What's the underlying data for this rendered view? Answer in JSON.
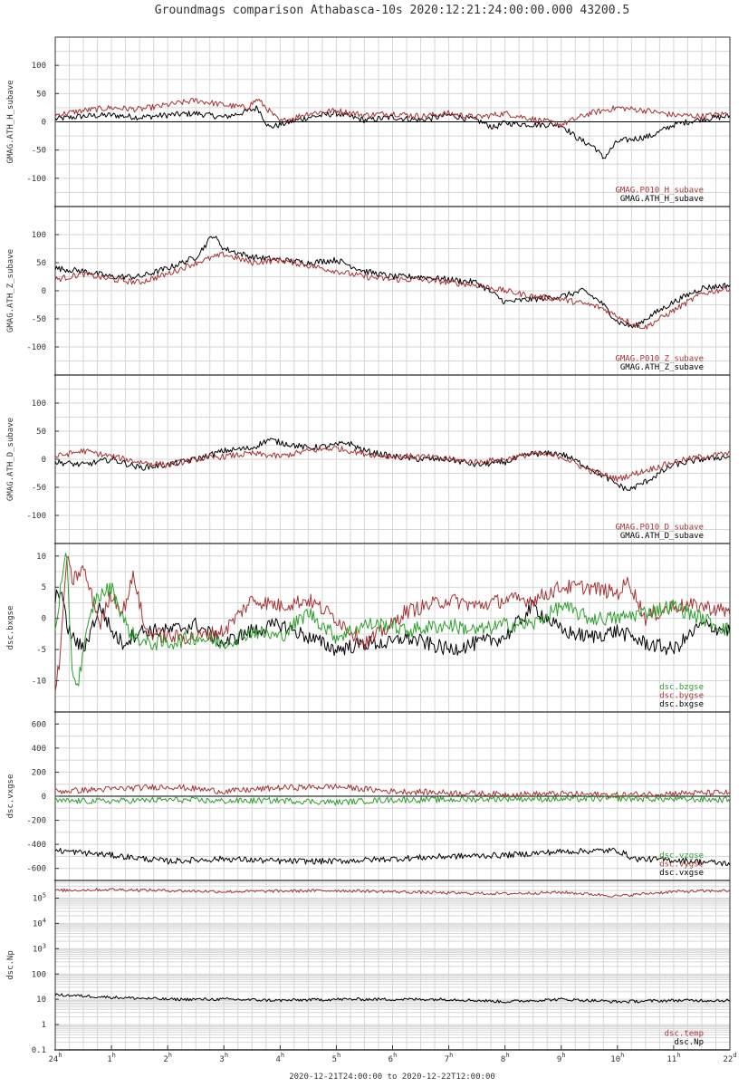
{
  "title": "Groundmags comparison Athabasca-10s 2020:12:21:24:00:00.000 43200.5",
  "footer": "2020-12-21T24:00:00 to 2020-12-22T12:00:00",
  "colors": {
    "black": "#000000",
    "red": "#a83232",
    "green": "#2ca02c",
    "grid": "#d6d6d6"
  },
  "chart_data": [
    {
      "type": "line",
      "ylabel": "GMAG.ATH_H_subave",
      "ylim": [
        -150,
        150
      ],
      "yticks": [
        "100",
        "50",
        "0",
        "-50",
        "-100"
      ],
      "ytick_values": [
        100,
        50,
        0,
        -50,
        -100
      ],
      "zero_line": true,
      "legend": [
        "GMAG.P010_H_subave",
        "GMAG.ATH_H_subave"
      ],
      "series": [
        {
          "name": "GMAG.P010_H_subave",
          "color": "#a83232",
          "x": [
            0,
            0.5,
            1,
            1.5,
            2,
            2.5,
            3,
            3.4,
            3.6,
            4,
            4.5,
            5,
            5.5,
            6,
            6.5,
            7,
            7.5,
            8,
            8.5,
            9,
            9.5,
            10,
            10.5,
            11,
            11.5,
            12
          ],
          "y": [
            12,
            20,
            25,
            22,
            30,
            38,
            30,
            25,
            40,
            0,
            15,
            20,
            12,
            15,
            10,
            15,
            8,
            15,
            5,
            -5,
            15,
            25,
            20,
            12,
            10,
            15
          ]
        },
        {
          "name": "GMAG.ATH_H_subave",
          "color": "#000000",
          "x": [
            0,
            0.5,
            1,
            1.5,
            2,
            2.5,
            3,
            3.4,
            3.6,
            3.8,
            4,
            4.5,
            5,
            5.5,
            6,
            6.5,
            7,
            7.5,
            7.8,
            8,
            8.5,
            9,
            9.3,
            9.6,
            9.75,
            10,
            10.3,
            10.6,
            11,
            11.5,
            12
          ],
          "y": [
            5,
            10,
            12,
            8,
            12,
            15,
            8,
            18,
            25,
            -10,
            -5,
            8,
            15,
            3,
            8,
            3,
            12,
            3,
            -10,
            -2,
            -5,
            -5,
            -30,
            -45,
            -65,
            -35,
            -30,
            -25,
            -5,
            5,
            10
          ]
        }
      ]
    },
    {
      "type": "line",
      "ylabel": "GMAG.ATH_Z_subave",
      "ylim": [
        -150,
        150
      ],
      "yticks": [
        "100",
        "50",
        "0",
        "-50",
        "-100"
      ],
      "ytick_values": [
        100,
        50,
        0,
        -50,
        -100
      ],
      "zero_line": false,
      "legend": [
        "GMAG.P010_Z_subave",
        "GMAG.ATH_Z_subave"
      ],
      "series": [
        {
          "name": "GMAG.P010_Z_subave",
          "color": "#a83232",
          "x": [
            0,
            0.5,
            1,
            1.5,
            2,
            2.5,
            3,
            3.5,
            4,
            4.5,
            5,
            5.5,
            6,
            6.5,
            7,
            7.5,
            8,
            8.5,
            9,
            9.5,
            9.7,
            10,
            10.3,
            10.5,
            11,
            11.5,
            12
          ],
          "y": [
            20,
            30,
            20,
            15,
            30,
            50,
            65,
            50,
            55,
            45,
            35,
            25,
            20,
            20,
            15,
            10,
            0,
            -10,
            -15,
            -25,
            -30,
            -45,
            -60,
            -65,
            -35,
            -5,
            5
          ]
        },
        {
          "name": "GMAG.ATH_Z_subave",
          "color": "#000000",
          "x": [
            0,
            0.5,
            1,
            1.5,
            2,
            2.5,
            2.7,
            2.8,
            3,
            3.5,
            4,
            4.5,
            5,
            5.5,
            6,
            6.5,
            7,
            7.5,
            8,
            8.5,
            9,
            9.4,
            9.7,
            10,
            10.3,
            10.5,
            11,
            11.5,
            12
          ],
          "y": [
            40,
            35,
            25,
            25,
            40,
            60,
            85,
            100,
            75,
            60,
            55,
            50,
            55,
            35,
            25,
            25,
            20,
            15,
            -20,
            -15,
            -10,
            0,
            -20,
            -55,
            -65,
            -50,
            -20,
            5,
            10
          ]
        }
      ]
    },
    {
      "type": "line",
      "ylabel": "GMAG.ATH_D_subave",
      "ylim": [
        -150,
        150
      ],
      "yticks": [
        "100",
        "50",
        "0",
        "-50",
        "-100"
      ],
      "ytick_values": [
        100,
        50,
        0,
        -50,
        -100
      ],
      "zero_line": false,
      "legend": [
        "GMAG.P010_D_subave",
        "GMAG.ATH_D_subave"
      ],
      "series": [
        {
          "name": "GMAG.P010_D_subave",
          "color": "#a83232",
          "x": [
            0,
            0.5,
            1,
            1.5,
            2,
            2.5,
            3,
            3.5,
            4,
            4.5,
            5,
            5.5,
            6,
            6.5,
            7,
            7.5,
            8,
            8.5,
            9,
            9.5,
            10,
            10.5,
            11,
            11.5,
            12
          ],
          "y": [
            5,
            15,
            5,
            -5,
            -10,
            0,
            5,
            10,
            5,
            15,
            20,
            10,
            5,
            5,
            0,
            -5,
            0,
            10,
            5,
            -20,
            -35,
            -20,
            -5,
            5,
            10
          ]
        },
        {
          "name": "GMAG.ATH_D_subave",
          "color": "#000000",
          "x": [
            0,
            0.5,
            1,
            1.5,
            2,
            2.5,
            3,
            3.5,
            3.8,
            4,
            4.5,
            5,
            5.2,
            5.5,
            6,
            6.5,
            7,
            7.5,
            8,
            8.5,
            9,
            9.5,
            10,
            10.2,
            10.5,
            11,
            11.5,
            12
          ],
          "y": [
            -5,
            -10,
            0,
            -15,
            -10,
            0,
            15,
            20,
            35,
            30,
            20,
            25,
            30,
            15,
            5,
            0,
            0,
            -10,
            -5,
            10,
            10,
            -15,
            -45,
            -55,
            -40,
            -10,
            0,
            5
          ]
        }
      ]
    },
    {
      "type": "line",
      "ylabel": "dsc.bxgse",
      "ylim": [
        -15,
        12
      ],
      "yticks": [
        "10",
        "5",
        "0",
        "-5",
        "-10"
      ],
      "ytick_values": [
        10,
        5,
        0,
        -5,
        -10
      ],
      "zero_line": false,
      "legend": [
        "dsc.bzgse",
        "dsc.bygse",
        "dsc.bxgse"
      ],
      "series": [
        {
          "name": "dsc.bzgse",
          "color": "#2ca02c",
          "x": [
            0,
            0.1,
            0.2,
            0.3,
            0.4,
            0.5,
            0.7,
            1,
            1.3,
            1.6,
            2,
            2.5,
            3,
            3.5,
            4,
            4.5,
            5,
            5.5,
            6,
            6.2,
            7,
            7.5,
            8,
            8.5,
            9,
            9.5,
            10,
            10.5,
            11,
            11.5,
            12
          ],
          "y": [
            -2,
            5,
            10,
            -8,
            -11,
            -5,
            3,
            5,
            -2,
            -4,
            -4,
            -3,
            -4,
            -2,
            -3,
            1,
            -3,
            -1,
            -1,
            -2,
            -1,
            -2,
            -1,
            -1,
            2,
            0,
            0,
            1,
            2,
            0,
            -2
          ]
        },
        {
          "name": "dsc.bygse",
          "color": "#a83232",
          "x": [
            0,
            0.1,
            0.2,
            0.3,
            0.5,
            0.8,
            1,
            1.2,
            1.4,
            1.6,
            2,
            2.5,
            3,
            3.5,
            4,
            4.5,
            5,
            5.5,
            6,
            6.2,
            7,
            7.5,
            8,
            8.5,
            9,
            9.5,
            10,
            10.2,
            10.5,
            11,
            11.5,
            12
          ],
          "y": [
            -12,
            -5,
            10,
            6,
            8,
            -1,
            4,
            1,
            7,
            -2,
            -3,
            -3,
            -2,
            3,
            2,
            3,
            0,
            -4,
            -1,
            1,
            3,
            2,
            3,
            3,
            5,
            5,
            4,
            6,
            0,
            2,
            2,
            1
          ]
        },
        {
          "name": "dsc.bxgse",
          "color": "#000000",
          "x": [
            0,
            0.1,
            0.2,
            0.3,
            0.5,
            0.8,
            1,
            1.2,
            1.5,
            2,
            2.5,
            3,
            3.5,
            4,
            4.5,
            5,
            5.5,
            6,
            6.2,
            7,
            7.5,
            8,
            8.5,
            9,
            9.5,
            10,
            10.5,
            11,
            11.5,
            12
          ],
          "y": [
            3,
            5,
            -1,
            -3,
            -5,
            2,
            -2,
            -4,
            -2,
            -2,
            -1,
            -4,
            -2,
            -1,
            -3,
            -5,
            -4,
            -4,
            -3,
            -5,
            -4,
            -3,
            2,
            -2,
            -3,
            -2,
            -4,
            -5,
            -1,
            -2
          ]
        }
      ]
    },
    {
      "type": "line",
      "ylabel": "dsc.vxgse",
      "ylim": [
        -700,
        700
      ],
      "yticks": [
        "600",
        "400",
        "200",
        "0",
        "-200",
        "-400",
        "-600"
      ],
      "ytick_values": [
        600,
        400,
        200,
        0,
        -200,
        -400,
        -600
      ],
      "zero_line": true,
      "legend": [
        "dsc.vzgse",
        "dsc.vygse",
        "dsc.vxgse"
      ],
      "series": [
        {
          "name": "dsc.vzgse",
          "color": "#2ca02c",
          "x": [
            0,
            1,
            2,
            3,
            4,
            5,
            6,
            7,
            8,
            9,
            10,
            11,
            12
          ],
          "y": [
            -40,
            -40,
            -30,
            -40,
            -35,
            -50,
            -30,
            -30,
            -20,
            -25,
            -20,
            -25,
            -30
          ]
        },
        {
          "name": "dsc.vygse",
          "color": "#a83232",
          "x": [
            0,
            1,
            2,
            2.3,
            3,
            4,
            5,
            6,
            7,
            8,
            9,
            10,
            11,
            12
          ],
          "y": [
            40,
            60,
            80,
            70,
            40,
            70,
            80,
            40,
            30,
            15,
            20,
            10,
            25,
            30
          ]
        },
        {
          "name": "dsc.vxgse",
          "color": "#000000",
          "x": [
            0,
            1,
            2,
            3,
            4,
            5,
            6,
            7,
            8,
            9,
            10,
            10.3,
            11,
            12
          ],
          "y": [
            -450,
            -490,
            -540,
            -520,
            -540,
            -540,
            -520,
            -500,
            -490,
            -460,
            -450,
            -520,
            -530,
            -560
          ]
        }
      ]
    },
    {
      "type": "line",
      "ylabel": "dsc.Np",
      "yscale": "log",
      "ylim": [
        0.1,
        500000
      ],
      "yticks": [
        "10^5",
        "10^4",
        "10^3",
        "100",
        "10",
        "1",
        "0.1"
      ],
      "ytick_values": [
        100000,
        10000,
        1000,
        100,
        10,
        1,
        0.1
      ],
      "zero_line": false,
      "legend": [
        "dsc.temp",
        "dsc.Np"
      ],
      "series": [
        {
          "name": "dsc.temp",
          "color": "#a83232",
          "x": [
            0,
            1,
            2,
            3,
            4,
            5,
            6,
            7,
            8,
            9,
            10,
            11,
            12
          ],
          "y": [
            200000,
            220000,
            200000,
            180000,
            190000,
            200000,
            180000,
            160000,
            150000,
            170000,
            120000,
            180000,
            200000
          ]
        },
        {
          "name": "dsc.Np",
          "color": "#000000",
          "x": [
            0,
            1,
            2,
            3,
            4,
            5,
            6,
            7,
            8,
            9,
            10,
            11,
            12
          ],
          "y": [
            15,
            12,
            10,
            10,
            9,
            10,
            10,
            10,
            8,
            10,
            8,
            9,
            9
          ]
        }
      ]
    }
  ],
  "xaxis": {
    "xlim": [
      0,
      12
    ],
    "ticks": [
      {
        "hour": 0,
        "num": "24",
        "sup": "h"
      },
      {
        "hour": 1,
        "num": "1",
        "sup": "h"
      },
      {
        "hour": 2,
        "num": "2",
        "sup": "h"
      },
      {
        "hour": 3,
        "num": "3",
        "sup": "h"
      },
      {
        "hour": 4,
        "num": "4",
        "sup": "h"
      },
      {
        "hour": 5,
        "num": "5",
        "sup": "h"
      },
      {
        "hour": 6,
        "num": "6",
        "sup": "h"
      },
      {
        "hour": 7,
        "num": "7",
        "sup": "h"
      },
      {
        "hour": 8,
        "num": "8",
        "sup": "h"
      },
      {
        "hour": 9,
        "num": "9",
        "sup": "h"
      },
      {
        "hour": 10,
        "num": "10",
        "sup": "h"
      },
      {
        "hour": 11,
        "num": "11",
        "sup": "h"
      },
      {
        "hour": 12,
        "num": "22",
        "sup": "d"
      }
    ]
  }
}
